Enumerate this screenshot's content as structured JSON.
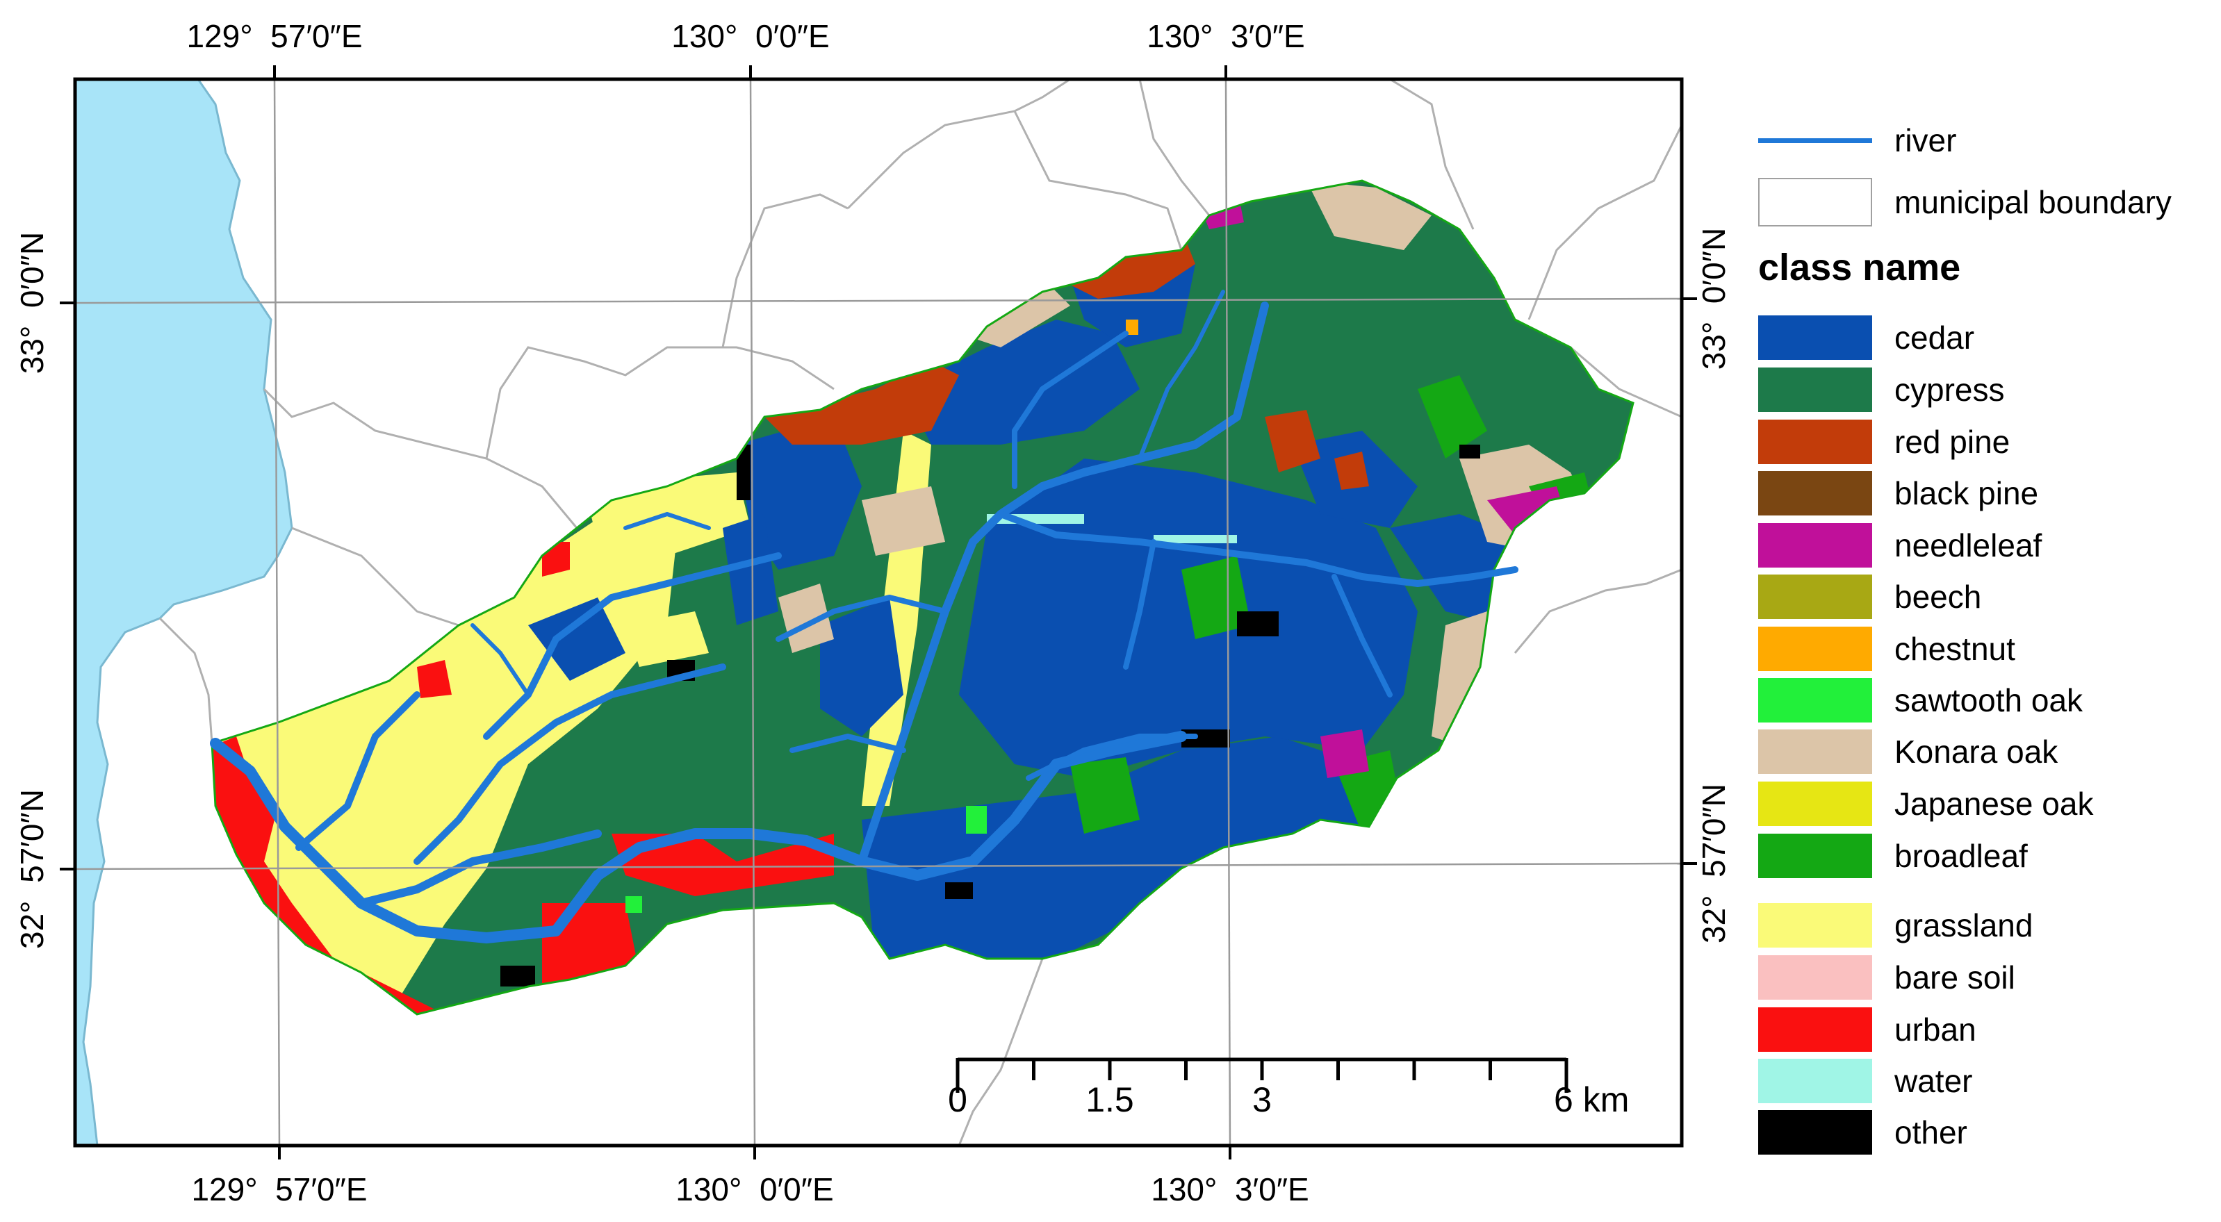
{
  "map": {
    "top_longitudes": [
      "129°  57′0″E",
      "130°  0′0″E",
      "130°  3′0″E"
    ],
    "bottom_longitudes": [
      "129°  57′0″E",
      "130°  0′0″E",
      "130°  3′0″E"
    ],
    "left_latitudes": [
      "33°  0′0″N",
      "32°  57′0″N"
    ],
    "right_latitudes": [
      "33°  0′0″N",
      "32°  57′0″N"
    ],
    "sea_color": "#a8e4f8",
    "boundary_color": "#b0b0b0"
  },
  "scale_bar": {
    "labels": [
      "0",
      "1.5",
      "3",
      "6 km"
    ],
    "max_km": 6,
    "tick_step_km": 0.75
  },
  "legend": {
    "river": {
      "label": "river",
      "color": "#1f78d8"
    },
    "boundary": {
      "label": "municipal boundary"
    },
    "heading": "class name",
    "classes": [
      {
        "label": "cedar",
        "color": "#0a4fb0"
      },
      {
        "label": "cypress",
        "color": "#1d7a4a"
      },
      {
        "label": "red pine",
        "color": "#c23c0a"
      },
      {
        "label": "black pine",
        "color": "#7a4612"
      },
      {
        "label": "needleleaf",
        "color": "#c0109a"
      },
      {
        "label": "beech",
        "color": "#a8a814"
      },
      {
        "label": "chestnut",
        "color": "#ffaa00"
      },
      {
        "label": "sawtooth oak",
        "color": "#22f03a"
      },
      {
        "label": "Konara oak",
        "color": "#dcc5a8"
      },
      {
        "label": "Japanese oak",
        "color": "#e6e614"
      },
      {
        "label": "broadleaf",
        "color": "#14a814"
      },
      {
        "label": "grassland",
        "color": "#fafa78"
      },
      {
        "label": "bare soil",
        "color": "#fac0c0"
      },
      {
        "label": "urban",
        "color": "#fa1010"
      },
      {
        "label": "water",
        "color": "#a0f5e6"
      },
      {
        "label": "other",
        "color": "#000000"
      }
    ]
  }
}
